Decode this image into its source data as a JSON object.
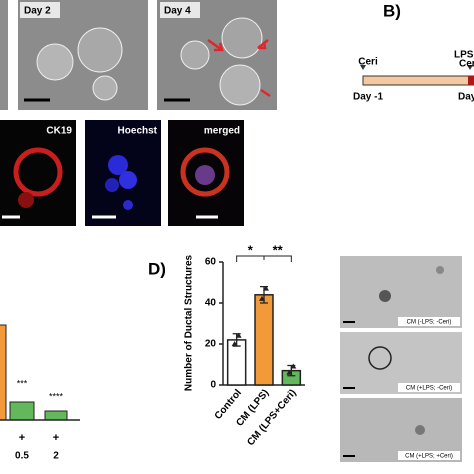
{
  "panels": {
    "a": {
      "labels": [
        "Day 2",
        "Day 4"
      ],
      "stains": [
        "CK19",
        "Hoechst",
        "merged"
      ]
    },
    "b": {
      "label": "B)",
      "timeline": {
        "start_label": "Ceri",
        "start_day": "Day -1",
        "end_labels": [
          "LPS",
          "Cer"
        ],
        "end_day": "Day"
      }
    },
    "c": {
      "significance": [
        "***",
        "****"
      ],
      "row1": [
        "+",
        "+"
      ],
      "row2": [
        "0.5",
        "2"
      ]
    },
    "e": {
      "captions": [
        "CM (-LPS; -Ceri)",
        "CM (+LPS; -Ceri)",
        "CM (+LPS; +Ceri)"
      ]
    }
  },
  "chart_data": {
    "type": "bar",
    "panel_label": "D)",
    "ylabel": "Number of Ductal Structures",
    "categories": [
      "Control",
      "CM (LPS)",
      "CM (LPS+Ceri)"
    ],
    "values": [
      22,
      44,
      7
    ],
    "errors": [
      3,
      4,
      2.5
    ],
    "points": [
      [
        20,
        24
      ],
      [
        42,
        47
      ],
      [
        6,
        9
      ]
    ],
    "colors": [
      "#ffffff",
      "#f29a3a",
      "#62b85a"
    ],
    "ylim": [
      0,
      60
    ],
    "yticks": [
      0,
      20,
      40,
      60
    ],
    "significance": [
      "*",
      "**"
    ]
  }
}
